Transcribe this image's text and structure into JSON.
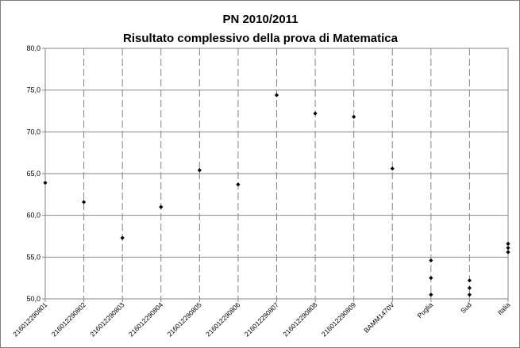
{
  "chart_data": {
    "type": "scatter",
    "title": "PN 2010/2011",
    "subtitle": "Risultato complessivo della prova di Matematica",
    "xlabel": "",
    "ylabel": "",
    "ylim": [
      50.0,
      80.0
    ],
    "yticks": [
      "50,0",
      "55,0",
      "60,0",
      "65,0",
      "70,0",
      "75,0",
      "80,0"
    ],
    "categories": [
      "216012290801",
      "216012290802",
      "216012290803",
      "216012290804",
      "216012290805",
      "216012290806",
      "216012290807",
      "216012290808",
      "216012290809",
      "BAMM1470V",
      "Puglia",
      "Sud",
      "Italia"
    ],
    "grid": "horizontal solid, vertical dashed",
    "legend": "none",
    "marker_color": "#000000",
    "points": [
      {
        "category": "216012290801",
        "values": [
          63.9
        ]
      },
      {
        "category": "216012290802",
        "values": [
          61.6
        ]
      },
      {
        "category": "216012290803",
        "values": [
          57.3
        ]
      },
      {
        "category": "216012290804",
        "values": [
          61.0
        ]
      },
      {
        "category": "216012290805",
        "values": [
          65.4
        ]
      },
      {
        "category": "216012290806",
        "values": [
          63.7
        ]
      },
      {
        "category": "216012290807",
        "values": [
          74.4
        ]
      },
      {
        "category": "216012290808",
        "values": [
          72.2
        ]
      },
      {
        "category": "216012290809",
        "values": [
          71.8
        ]
      },
      {
        "category": "BAMM1470V",
        "values": [
          65.6
        ]
      },
      {
        "category": "Puglia",
        "values": [
          54.6,
          52.5,
          50.5
        ]
      },
      {
        "category": "Sud",
        "values": [
          52.2,
          51.3,
          50.5
        ]
      },
      {
        "category": "Italia",
        "values": [
          56.6,
          56.1,
          55.6
        ]
      }
    ]
  }
}
